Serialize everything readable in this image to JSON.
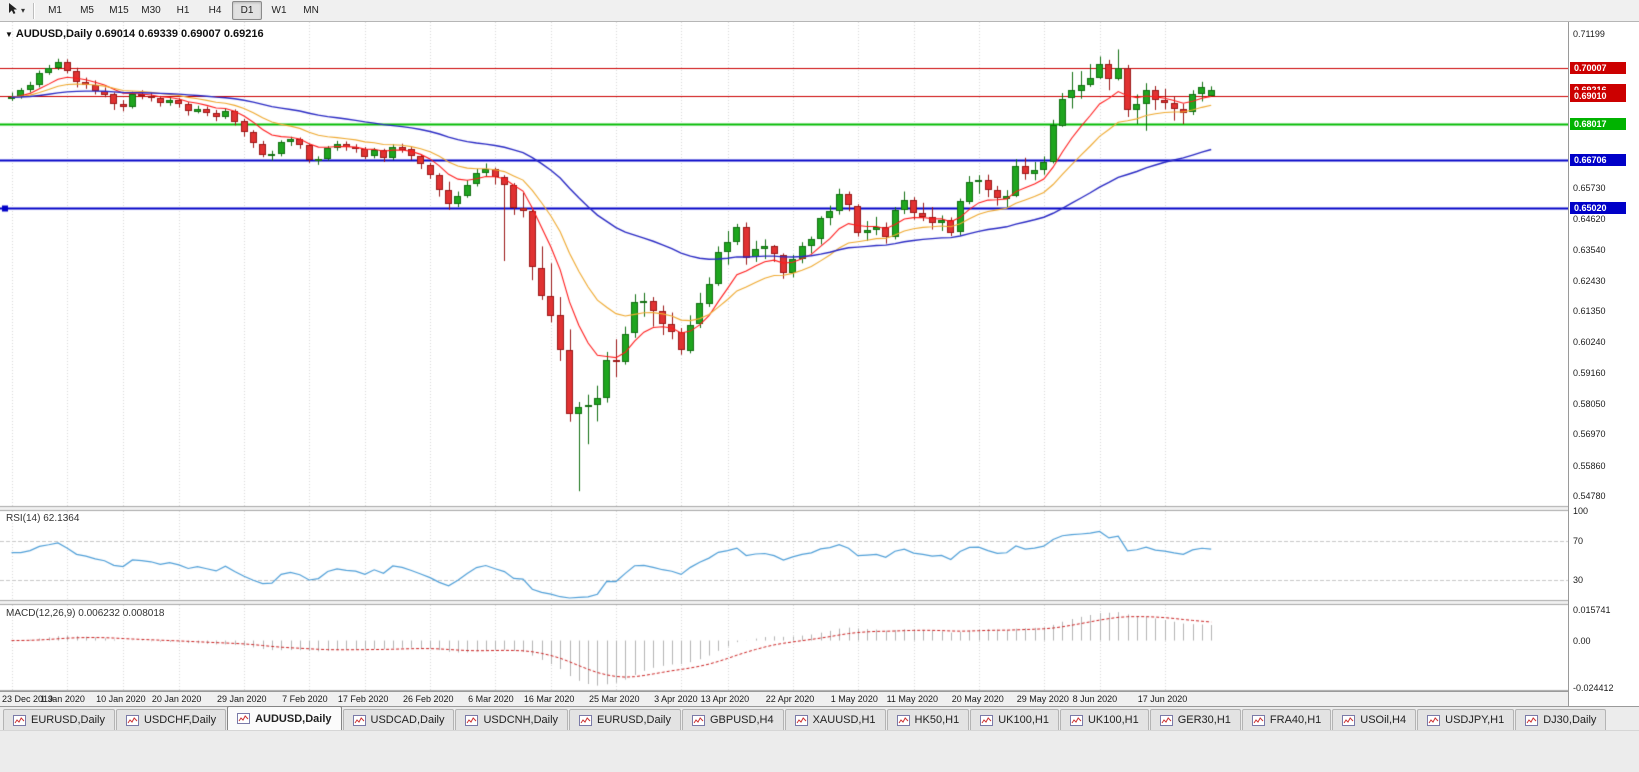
{
  "toolbar": {
    "timeframes": [
      "M1",
      "M5",
      "M15",
      "M30",
      "H1",
      "H4",
      "D1",
      "W1",
      "MN"
    ],
    "active_timeframe": "D1"
  },
  "chart_header": {
    "title_text": "AUDUSD,Daily 0.69014 0.69339 0.69007 0.69216"
  },
  "indicators": {
    "rsi_label": "RSI(14) 62.1364",
    "macd_label": "MACD(12,26,9) 0.006232 0.008018"
  },
  "tabs": {
    "active_index": 2,
    "items": [
      "EURUSD,Daily",
      "USDCHF,Daily",
      "AUDUSD,Daily",
      "USDCAD,Daily",
      "USDCNH,Daily",
      "EURUSD,Daily",
      "GBPUSD,H4",
      "XAUUSD,H1",
      "HK50,H1",
      "UK100,H1",
      "UK100,H1",
      "GER30,H1",
      "FRA40,H1",
      "USOil,H4",
      "USDJPY,H1",
      "DJ30,Daily"
    ]
  },
  "chart_data": {
    "type": "candlestick",
    "symbol": "AUDUSD",
    "timeframe": "Daily",
    "ohlc_current": {
      "open": 0.69014,
      "high": 0.69339,
      "low": 0.69007,
      "close": 0.69216
    },
    "y_axis": {
      "min": 0.5478,
      "max": 0.71199,
      "labels": [
        "0.71199",
        "0.65730",
        "0.64620",
        "0.63540",
        "0.62430",
        "0.61350",
        "0.60240",
        "0.59160",
        "0.58050",
        "0.56970",
        "0.55860",
        "0.54780"
      ]
    },
    "price_tags": [
      {
        "price": 0.70007,
        "text": "0.70007",
        "color": "#cc0000"
      },
      {
        "price": 0.69216,
        "text": "0.69216",
        "color": "#cc0000"
      },
      {
        "price": 0.6901,
        "text": "0.69010",
        "color": "#cc0000"
      },
      {
        "price": 0.68017,
        "text": "0.68017",
        "color": "#00b300"
      },
      {
        "price": 0.66706,
        "text": "0.66706",
        "color": "#0000c8"
      },
      {
        "price": 0.6502,
        "text": "0.65020",
        "color": "#0000c8"
      }
    ],
    "hlines": [
      {
        "price": 0.70007,
        "color": "#cc0000",
        "width": 1,
        "handle": false
      },
      {
        "price": 0.6901,
        "color": "#cc0000",
        "width": 1,
        "handle": false
      },
      {
        "price": 0.68017,
        "color": "#00bb00",
        "width": 2,
        "handle": false
      },
      {
        "price": 0.66706,
        "color": "#0000c8",
        "width": 2,
        "handle": false
      },
      {
        "price": 0.6502,
        "color": "#0000c8",
        "width": 2,
        "handle": true
      }
    ],
    "x_ticks": [
      {
        "label": "23 Dec 2019",
        "i": 0
      },
      {
        "label": "1 Jan 2020",
        "i": 6
      },
      {
        "label": "10 Jan 2020",
        "i": 12
      },
      {
        "label": "20 Jan 2020",
        "i": 18
      },
      {
        "label": "29 Jan 2020",
        "i": 25
      },
      {
        "label": "7 Feb 2020",
        "i": 32
      },
      {
        "label": "17 Feb 2020",
        "i": 38
      },
      {
        "label": "26 Feb 2020",
        "i": 45
      },
      {
        "label": "6 Mar 2020",
        "i": 52
      },
      {
        "label": "16 Mar 2020",
        "i": 58
      },
      {
        "label": "25 Mar 2020",
        "i": 65
      },
      {
        "label": "3 Apr 2020",
        "i": 72
      },
      {
        "label": "13 Apr 2020",
        "i": 77
      },
      {
        "label": "22 Apr 2020",
        "i": 84
      },
      {
        "label": "1 May 2020",
        "i": 91
      },
      {
        "label": "11 May 2020",
        "i": 97
      },
      {
        "label": "20 May 2020",
        "i": 104
      },
      {
        "label": "29 May 2020",
        "i": 111
      },
      {
        "label": "8 Jun 2020",
        "i": 117
      },
      {
        "label": "17 Jun 2020",
        "i": 124
      }
    ],
    "candles": [
      [
        0.689,
        0.6912,
        0.6882,
        0.6895
      ],
      [
        0.6895,
        0.6928,
        0.689,
        0.692
      ],
      [
        0.692,
        0.695,
        0.6912,
        0.6938
      ],
      [
        0.6938,
        0.699,
        0.693,
        0.6982
      ],
      [
        0.6982,
        0.701,
        0.6975,
        0.7
      ],
      [
        0.7,
        0.7032,
        0.6992,
        0.7021
      ],
      [
        0.7021,
        0.703,
        0.698,
        0.699
      ],
      [
        0.699,
        0.7,
        0.693,
        0.695
      ],
      [
        0.695,
        0.6965,
        0.6925,
        0.6938
      ],
      [
        0.6938,
        0.6955,
        0.6905,
        0.6918
      ],
      [
        0.6918,
        0.693,
        0.6895,
        0.6905
      ],
      [
        0.6905,
        0.6912,
        0.685,
        0.687
      ],
      [
        0.687,
        0.6885,
        0.6845,
        0.686
      ],
      [
        0.686,
        0.6915,
        0.6855,
        0.6905
      ],
      [
        0.6905,
        0.692,
        0.6888,
        0.69
      ],
      [
        0.69,
        0.691,
        0.688,
        0.6892
      ],
      [
        0.6892,
        0.69,
        0.6862,
        0.6875
      ],
      [
        0.6875,
        0.6895,
        0.6865,
        0.6885
      ],
      [
        0.6885,
        0.6892,
        0.6858,
        0.687
      ],
      [
        0.687,
        0.6878,
        0.683,
        0.6845
      ],
      [
        0.6845,
        0.6865,
        0.6838,
        0.6855
      ],
      [
        0.6855,
        0.6862,
        0.6828,
        0.684
      ],
      [
        0.684,
        0.685,
        0.681,
        0.6825
      ],
      [
        0.6825,
        0.6855,
        0.6818,
        0.6848
      ],
      [
        0.6848,
        0.6852,
        0.6795,
        0.681
      ],
      [
        0.681,
        0.6818,
        0.6755,
        0.677
      ],
      [
        0.677,
        0.6778,
        0.6715,
        0.673
      ],
      [
        0.673,
        0.674,
        0.6682,
        0.669
      ],
      [
        0.669,
        0.6705,
        0.667,
        0.6692
      ],
      [
        0.6692,
        0.6742,
        0.6685,
        0.6735
      ],
      [
        0.6735,
        0.6755,
        0.6722,
        0.6745
      ],
      [
        0.6745,
        0.6752,
        0.6712,
        0.6725
      ],
      [
        0.6725,
        0.673,
        0.6662,
        0.667
      ],
      [
        0.667,
        0.6685,
        0.6655,
        0.6677
      ],
      [
        0.6677,
        0.6722,
        0.667,
        0.6715
      ],
      [
        0.6715,
        0.674,
        0.6705,
        0.673
      ],
      [
        0.673,
        0.6738,
        0.6705,
        0.6718
      ],
      [
        0.6718,
        0.6728,
        0.6698,
        0.6712
      ],
      [
        0.6712,
        0.6718,
        0.6675,
        0.6685
      ],
      [
        0.6685,
        0.6715,
        0.6678,
        0.6708
      ],
      [
        0.6708,
        0.6712,
        0.6665,
        0.668
      ],
      [
        0.668,
        0.6728,
        0.6672,
        0.672
      ],
      [
        0.672,
        0.673,
        0.6698,
        0.671
      ],
      [
        0.671,
        0.6718,
        0.6672,
        0.6685
      ],
      [
        0.6685,
        0.669,
        0.664,
        0.6655
      ],
      [
        0.6655,
        0.6662,
        0.6605,
        0.662
      ],
      [
        0.662,
        0.6625,
        0.6542,
        0.6565
      ],
      [
        0.6565,
        0.6595,
        0.6495,
        0.6515
      ],
      [
        0.6515,
        0.656,
        0.6505,
        0.6545
      ],
      [
        0.6545,
        0.66,
        0.6538,
        0.6585
      ],
      [
        0.6585,
        0.664,
        0.6578,
        0.6625
      ],
      [
        0.6625,
        0.666,
        0.6612,
        0.664
      ],
      [
        0.664,
        0.6645,
        0.6585,
        0.661
      ],
      [
        0.661,
        0.6618,
        0.6313,
        0.6582
      ],
      [
        0.6582,
        0.659,
        0.6477,
        0.65
      ],
      [
        0.65,
        0.6555,
        0.6468,
        0.649
      ],
      [
        0.649,
        0.6495,
        0.6245,
        0.629
      ],
      [
        0.629,
        0.6365,
        0.6175,
        0.619
      ],
      [
        0.619,
        0.6305,
        0.6095,
        0.612
      ],
      [
        0.612,
        0.6185,
        0.5958,
        0.5997
      ],
      [
        0.5997,
        0.607,
        0.5742,
        0.577
      ],
      [
        0.577,
        0.5812,
        0.5495,
        0.5795
      ],
      [
        0.5795,
        0.5838,
        0.5662,
        0.58
      ],
      [
        0.58,
        0.587,
        0.5743,
        0.5825
      ],
      [
        0.5825,
        0.599,
        0.581,
        0.596
      ],
      [
        0.596,
        0.6035,
        0.59,
        0.5955
      ],
      [
        0.5955,
        0.608,
        0.5945,
        0.6055
      ],
      [
        0.6055,
        0.6195,
        0.604,
        0.6166
      ],
      [
        0.6166,
        0.62,
        0.6115,
        0.6172
      ],
      [
        0.6172,
        0.6185,
        0.608,
        0.6135
      ],
      [
        0.6135,
        0.6155,
        0.605,
        0.609
      ],
      [
        0.609,
        0.613,
        0.6035,
        0.606
      ],
      [
        0.606,
        0.6075,
        0.598,
        0.5995
      ],
      [
        0.5995,
        0.612,
        0.5985,
        0.6087
      ],
      [
        0.6087,
        0.62,
        0.6075,
        0.6163
      ],
      [
        0.6163,
        0.6255,
        0.615,
        0.6233
      ],
      [
        0.6233,
        0.6365,
        0.6225,
        0.6345
      ],
      [
        0.6345,
        0.642,
        0.63,
        0.638
      ],
      [
        0.638,
        0.6445,
        0.637,
        0.6435
      ],
      [
        0.6435,
        0.645,
        0.63,
        0.6325
      ],
      [
        0.6325,
        0.6385,
        0.631,
        0.6355
      ],
      [
        0.6355,
        0.639,
        0.632,
        0.6365
      ],
      [
        0.6365,
        0.637,
        0.631,
        0.6335
      ],
      [
        0.6335,
        0.634,
        0.625,
        0.627
      ],
      [
        0.627,
        0.6335,
        0.6255,
        0.632
      ],
      [
        0.632,
        0.638,
        0.6305,
        0.6365
      ],
      [
        0.6365,
        0.64,
        0.634,
        0.639
      ],
      [
        0.639,
        0.6472,
        0.6372,
        0.6465
      ],
      [
        0.6465,
        0.651,
        0.644,
        0.649
      ],
      [
        0.649,
        0.657,
        0.6478,
        0.655
      ],
      [
        0.655,
        0.656,
        0.649,
        0.651
      ],
      [
        0.651,
        0.6515,
        0.64,
        0.6415
      ],
      [
        0.6415,
        0.6455,
        0.6385,
        0.6425
      ],
      [
        0.6425,
        0.647,
        0.6405,
        0.6435
      ],
      [
        0.6435,
        0.645,
        0.6375,
        0.64
      ],
      [
        0.64,
        0.6505,
        0.639,
        0.6495
      ],
      [
        0.6495,
        0.656,
        0.648,
        0.653
      ],
      [
        0.653,
        0.654,
        0.646,
        0.6485
      ],
      [
        0.6485,
        0.652,
        0.6455,
        0.647
      ],
      [
        0.647,
        0.6505,
        0.6425,
        0.645
      ],
      [
        0.645,
        0.6475,
        0.642,
        0.646
      ],
      [
        0.646,
        0.6468,
        0.6402,
        0.6415
      ],
      [
        0.6415,
        0.6535,
        0.6405,
        0.6525
      ],
      [
        0.6525,
        0.6615,
        0.6515,
        0.6595
      ],
      [
        0.6595,
        0.6618,
        0.6552,
        0.66
      ],
      [
        0.66,
        0.662,
        0.654,
        0.6565
      ],
      [
        0.6565,
        0.658,
        0.651,
        0.6535
      ],
      [
        0.6535,
        0.6565,
        0.6505,
        0.6545
      ],
      [
        0.6545,
        0.6675,
        0.654,
        0.665
      ],
      [
        0.665,
        0.668,
        0.6602,
        0.662
      ],
      [
        0.662,
        0.6665,
        0.66,
        0.6635
      ],
      [
        0.6635,
        0.6685,
        0.662,
        0.6665
      ],
      [
        0.6665,
        0.6815,
        0.666,
        0.6795
      ],
      [
        0.6795,
        0.691,
        0.679,
        0.689
      ],
      [
        0.689,
        0.6985,
        0.6855,
        0.692
      ],
      [
        0.692,
        0.6988,
        0.689,
        0.694
      ],
      [
        0.694,
        0.7013,
        0.6932,
        0.6965
      ],
      [
        0.6965,
        0.704,
        0.696,
        0.7015
      ],
      [
        0.7015,
        0.7028,
        0.692,
        0.696
      ],
      [
        0.696,
        0.7065,
        0.6955,
        0.7
      ],
      [
        0.7,
        0.701,
        0.6825,
        0.685
      ],
      [
        0.685,
        0.6905,
        0.68,
        0.687
      ],
      [
        0.687,
        0.6945,
        0.6776,
        0.692
      ],
      [
        0.692,
        0.6935,
        0.685,
        0.6885
      ],
      [
        0.6885,
        0.6925,
        0.6852,
        0.6875
      ],
      [
        0.6875,
        0.6898,
        0.6812,
        0.6855
      ],
      [
        0.6855,
        0.6872,
        0.68,
        0.684
      ],
      [
        0.684,
        0.692,
        0.6832,
        0.6905
      ],
      [
        0.6905,
        0.695,
        0.688,
        0.693
      ],
      [
        0.69014,
        0.69339,
        0.69007,
        0.69216
      ]
    ],
    "colors": {
      "up": "#1fa51f",
      "up_stroke": "#127012",
      "down": "#e03232",
      "down_stroke": "#9c1818",
      "ma_fast": "#ff1a1a",
      "ma_mid": "#efa92f",
      "ma_slow": "#2929c4",
      "rsi": "#4f9fd8",
      "macd_hist": "#b4b4b4",
      "macd_signal": "#cc2222",
      "grid": "#d8d8d8",
      "rsi_levels": "#c8c8c8"
    },
    "moving_averages": [
      {
        "period": 8,
        "color_key": "ma_fast"
      },
      {
        "period": 16,
        "color_key": "ma_mid"
      },
      {
        "period": 45,
        "color_key": "ma_slow"
      }
    ],
    "rsi": {
      "period": 14,
      "value": 62.1364,
      "levels": [
        70,
        30
      ],
      "axis_labels": [
        {
          "v": 100,
          "text": "100"
        },
        {
          "v": 70,
          "text": "70"
        },
        {
          "v": 30,
          "text": "30"
        }
      ]
    },
    "macd": {
      "fast": 12,
      "slow": 26,
      "signal": 9,
      "value": 0.006232,
      "signal_value": 0.008018,
      "axis": {
        "max": 0.015741,
        "min": -0.024412,
        "labels": [
          {
            "v": 0.015741,
            "text": "0.015741"
          },
          {
            "v": 0,
            "text": "0.00"
          },
          {
            "v": -0.024412,
            "text": "-0.024412"
          }
        ]
      }
    }
  }
}
